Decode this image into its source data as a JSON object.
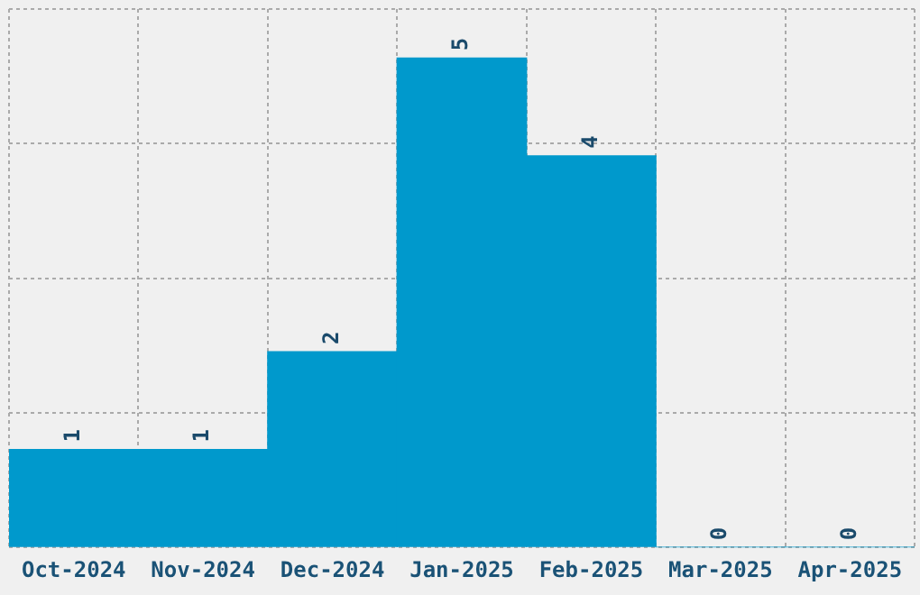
{
  "chart_data": {
    "type": "bar",
    "categories": [
      "Oct-2024",
      "Nov-2024",
      "Dec-2024",
      "Jan-2025",
      "Feb-2025",
      "Mar-2025",
      "Apr-2025"
    ],
    "values": [
      1,
      1,
      2,
      5,
      4,
      0,
      0
    ],
    "color": "#0099cc",
    "ylim": [
      0,
      5.5
    ],
    "yticks": [
      {
        "value": 0,
        "label": null
      },
      {
        "value": 1.375,
        "label": null
      },
      {
        "value": 2.75,
        "label": null
      },
      {
        "value": 4.125,
        "label": null
      },
      {
        "value": 5.5,
        "label": null
      }
    ],
    "grid": true,
    "data_labels": true,
    "tick_labels": "x"
  }
}
